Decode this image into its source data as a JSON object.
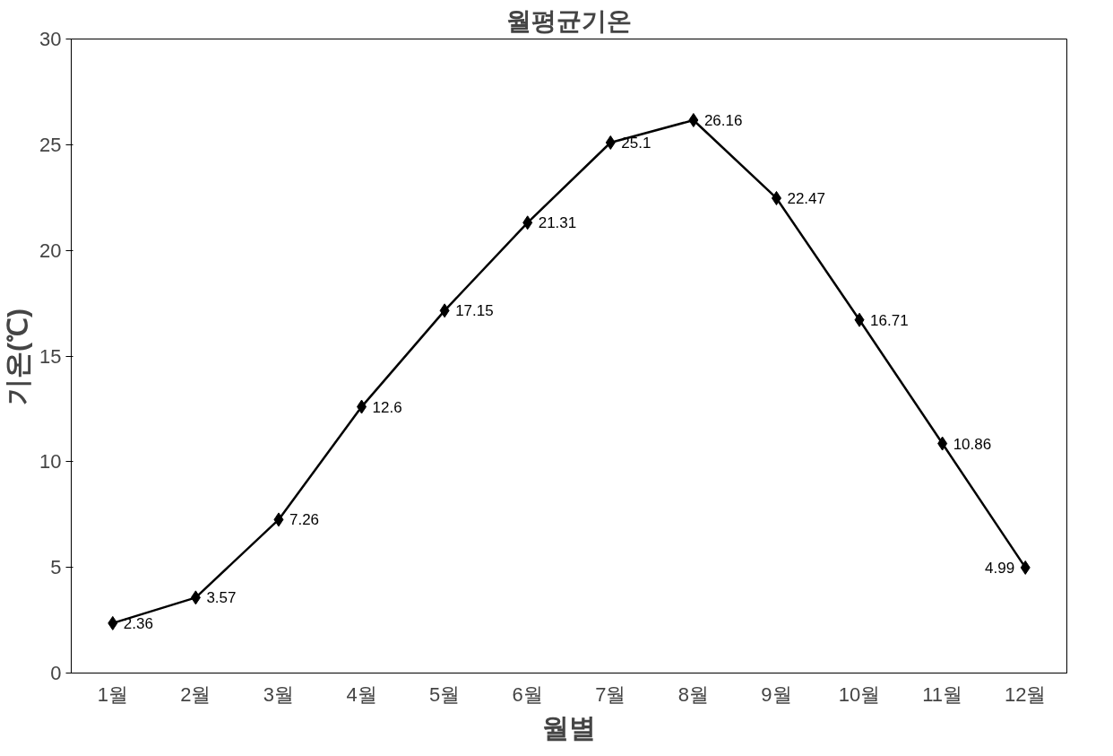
{
  "chart_data": {
    "type": "line",
    "title": "월평균기온",
    "xlabel": "월별",
    "ylabel": "기온(℃)",
    "categories": [
      "1월",
      "2월",
      "3월",
      "4월",
      "5월",
      "6월",
      "7월",
      "8월",
      "9월",
      "10월",
      "11월",
      "12월"
    ],
    "series": [
      {
        "color": "#000000",
        "values": [
          2.36,
          3.57,
          7.26,
          12.6,
          17.15,
          21.31,
          25.1,
          26.16,
          22.47,
          16.71,
          10.86,
          4.99
        ]
      }
    ],
    "ylim": [
      0,
      30
    ],
    "yticks": [
      0,
      5,
      10,
      15,
      20,
      25,
      30
    ],
    "grid": false,
    "marker": "diamond",
    "line_style": "solid",
    "data_labels": true
  }
}
